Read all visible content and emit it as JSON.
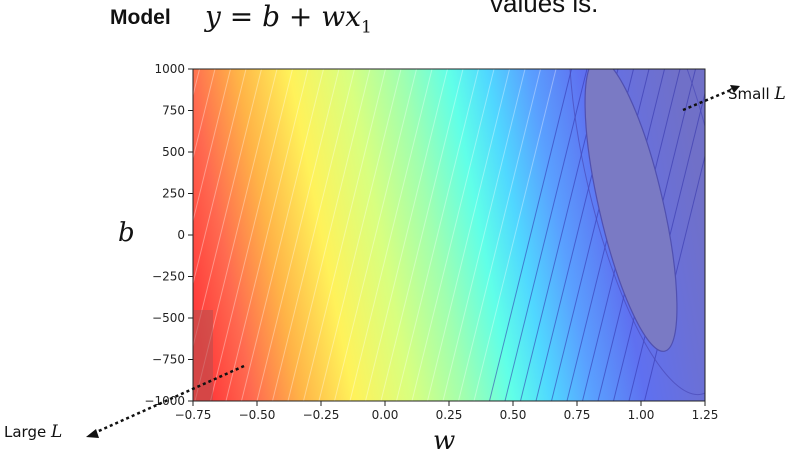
{
  "header": {
    "model_label": "Model",
    "equation_main": "y = b + wx",
    "equation_sub": "1",
    "cutoff_text": "values is."
  },
  "annotations": {
    "small_prefix": "Small",
    "small_var": "L",
    "large_prefix": "Large",
    "large_var": "L"
  },
  "chart_data": {
    "type": "contour",
    "xlabel": "w",
    "ylabel": "b",
    "xlim": [
      -0.75,
      1.25
    ],
    "ylim": [
      -1000,
      1000
    ],
    "x_ticks": [
      -0.75,
      -0.5,
      -0.25,
      0.0,
      0.25,
      0.5,
      0.75,
      1.0,
      1.25
    ],
    "x_tick_labels": [
      "−0.75",
      "−0.50",
      "−0.25",
      "0.00",
      "0.25",
      "0.50",
      "0.75",
      "1.00",
      "1.25"
    ],
    "y_ticks": [
      1000,
      750,
      500,
      250,
      0,
      -250,
      -500,
      -750,
      -1000
    ],
    "y_tick_labels": [
      "1000",
      "750",
      "500",
      "250",
      "0",
      "−250",
      "−500",
      "−750",
      "−1000"
    ],
    "colormap": "rainbow (red = large loss, blue/purple = small loss)",
    "minimum_region": {
      "w_center": 0.95,
      "b_center": 150
    },
    "grid": false
  }
}
